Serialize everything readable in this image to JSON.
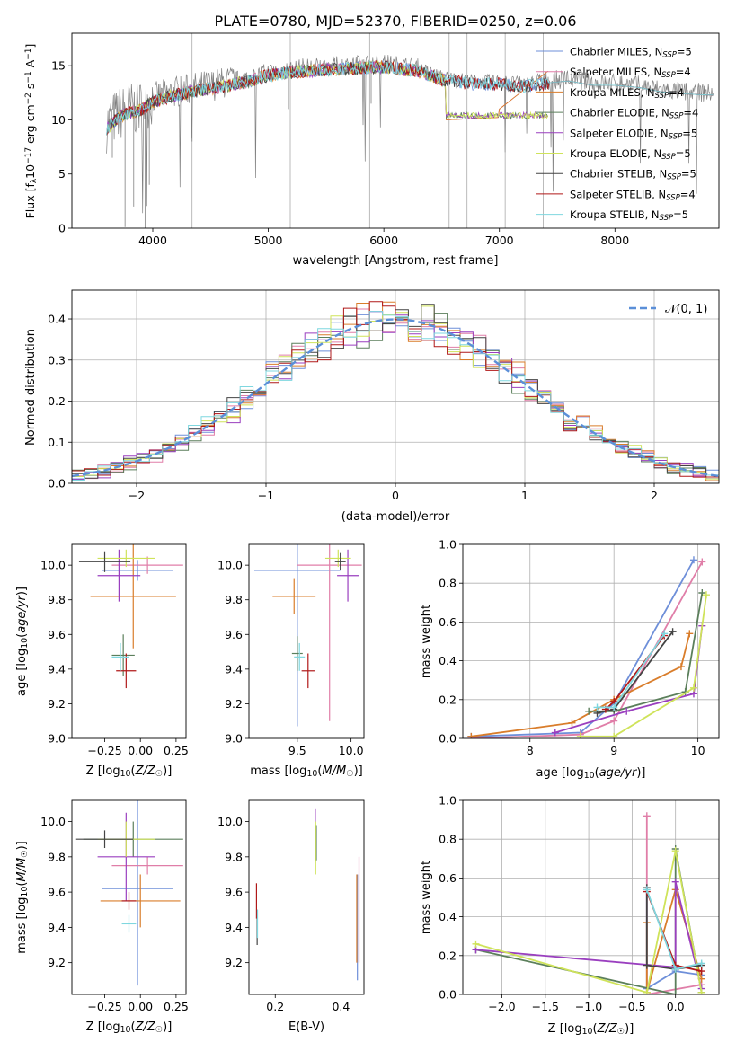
{
  "title": "PLATE=0780, MJD=52370, FIBERID=0250, z=0.06",
  "colors": {
    "Chabrier MILES": "#6e8fd9",
    "Salpeter MILES": "#e07ea8",
    "Kroupa MILES": "#d97d2b",
    "Chabrier ELODIE": "#5b7f5b",
    "Salpeter ELODIE": "#9a3fbf",
    "Kroupa ELODIE": "#cfe35a",
    "Chabrier STELIB": "#444444",
    "Salpeter STELIB": "#b01818",
    "Kroupa STELIB": "#7fd7df"
  },
  "chart_data": [
    {
      "type": "line",
      "id": "spectrum",
      "xlabel": "wavelength [Angstrom, rest frame]",
      "ylabel": "Flux [f_λ 10^-17 erg cm^-2 s^-1 A^-1]",
      "xlim": [
        3300,
        8900
      ],
      "ylim": [
        0,
        18
      ],
      "xticks": [
        "4000",
        "5000",
        "6000",
        "7000",
        "8000"
      ],
      "yticks": [
        "0",
        "5",
        "10",
        "15"
      ],
      "grid": false,
      "legend": "top-right",
      "legend_entries": [
        {
          "model": "Chabrier MILES",
          "nssp": "5"
        },
        {
          "model": "Salpeter MILES",
          "nssp": "4"
        },
        {
          "model": "Kroupa MILES",
          "nssp": "4"
        },
        {
          "model": "Chabrier ELODIE",
          "nssp": "4"
        },
        {
          "model": "Salpeter ELODIE",
          "nssp": "5"
        },
        {
          "model": "Kroupa ELODIE",
          "nssp": "5"
        },
        {
          "model": "Chabrier STELIB",
          "nssp": "5"
        },
        {
          "model": "Salpeter STELIB",
          "nssp": "4"
        },
        {
          "model": "Kroupa STELIB",
          "nssp": "5"
        }
      ],
      "data_continuum": [
        [
          3600,
          9.5
        ],
        [
          3700,
          10.5
        ],
        [
          3800,
          11.0
        ],
        [
          3900,
          11.2
        ],
        [
          4000,
          12.0
        ],
        [
          4200,
          12.6
        ],
        [
          4500,
          13.2
        ],
        [
          4800,
          13.8
        ],
        [
          5000,
          14.4
        ],
        [
          5300,
          14.8
        ],
        [
          5600,
          15.0
        ],
        [
          6000,
          15.2
        ],
        [
          6300,
          14.8
        ],
        [
          6500,
          14.0
        ],
        [
          6800,
          13.6
        ],
        [
          7000,
          13.6
        ],
        [
          7200,
          13.4
        ],
        [
          7400,
          13.6
        ],
        [
          7600,
          13.8
        ],
        [
          7800,
          13.4
        ],
        [
          8000,
          13.4
        ],
        [
          8200,
          13.2
        ],
        [
          8400,
          12.8
        ],
        [
          8600,
          12.6
        ],
        [
          8800,
          12.5
        ]
      ]
    },
    {
      "type": "histogram",
      "id": "residuals",
      "xlabel": "(data-model)/error",
      "ylabel": "Normed distribution",
      "xlim": [
        -2.5,
        2.5
      ],
      "ylim": [
        0,
        0.47
      ],
      "xticks": [
        "−2",
        "−1",
        "0",
        "1",
        "2"
      ],
      "yticks": [
        "0.0",
        "0.1",
        "0.2",
        "0.3",
        "0.4"
      ],
      "grid": true,
      "legend": "top-right",
      "reference_curve": "𝒩(0, 1)"
    },
    {
      "type": "scatter",
      "id": "age-vs-Z",
      "xlabel": "Z [log₁₀(Z/Z☉)]",
      "ylabel": "age  [log₁₀(age/yr)]",
      "xlim": [
        -0.48,
        0.32
      ],
      "ylim": [
        9.0,
        10.12
      ],
      "xticks": [
        "−0.25",
        "0.00",
        "0.25"
      ],
      "yticks": [
        "9.0",
        "9.2",
        "9.4",
        "9.6",
        "9.8",
        "10.0"
      ],
      "points": [
        {
          "model": "Chabrier MILES",
          "x": -0.02,
          "y": 9.97,
          "xerr": 0.25,
          "yerr": 0.06
        },
        {
          "model": "Salpeter MILES",
          "x": 0.05,
          "y": 10.0,
          "xerr": 0.25,
          "yerr": 0.05
        },
        {
          "model": "Kroupa MILES",
          "x": -0.05,
          "y": 9.82,
          "xerr": 0.3,
          "yerr": 0.3
        },
        {
          "model": "Chabrier ELODIE",
          "x": -0.12,
          "y": 9.48,
          "xerr": 0.08,
          "yerr": 0.12
        },
        {
          "model": "Salpeter ELODIE",
          "x": -0.15,
          "y": 9.94,
          "xerr": 0.15,
          "yerr": 0.15
        },
        {
          "model": "Kroupa ELODIE",
          "x": -0.1,
          "y": 10.04,
          "xerr": 0.2,
          "yerr": 0.05
        },
        {
          "model": "Chabrier STELIB",
          "x": -0.25,
          "y": 10.02,
          "xerr": 0.18,
          "yerr": 0.06
        },
        {
          "model": "Salpeter STELIB",
          "x": -0.1,
          "y": 9.39,
          "xerr": 0.07,
          "yerr": 0.1
        },
        {
          "model": "Kroupa STELIB",
          "x": -0.14,
          "y": 9.47,
          "xerr": 0.06,
          "yerr": 0.08
        }
      ]
    },
    {
      "type": "scatter",
      "id": "age-vs-mass",
      "xlabel": "mass [log₁₀(M/M☉)]",
      "ylabel": "",
      "xlim": [
        9.05,
        10.12
      ],
      "ylim": [
        9.0,
        10.12
      ],
      "xticks": [
        "9.5",
        "10.0"
      ],
      "yticks": [
        "9.0",
        "9.2",
        "9.4",
        "9.6",
        "9.8",
        "10.0"
      ],
      "points": [
        {
          "model": "Chabrier MILES",
          "x": 9.5,
          "y": 9.97,
          "xerr": 0.4,
          "yerr": 0.9
        },
        {
          "model": "Salpeter MILES",
          "x": 9.8,
          "y": 10.0,
          "xerr": 0.3,
          "yerr": 0.9
        },
        {
          "model": "Kroupa MILES",
          "x": 9.47,
          "y": 9.82,
          "xerr": 0.2,
          "yerr": 0.1
        },
        {
          "model": "Chabrier ELODIE",
          "x": 9.5,
          "y": 9.49,
          "xerr": 0.05,
          "yerr": 0.1
        },
        {
          "model": "Salpeter ELODIE",
          "x": 9.97,
          "y": 9.94,
          "xerr": 0.1,
          "yerr": 0.15
        },
        {
          "model": "Kroupa ELODIE",
          "x": 9.88,
          "y": 10.04,
          "xerr": 0.12,
          "yerr": 0.05
        },
        {
          "model": "Chabrier STELIB",
          "x": 9.9,
          "y": 10.02,
          "xerr": 0.05,
          "yerr": 0.05
        },
        {
          "model": "Salpeter STELIB",
          "x": 9.6,
          "y": 9.39,
          "xerr": 0.06,
          "yerr": 0.1
        },
        {
          "model": "Kroupa STELIB",
          "x": 9.52,
          "y": 9.47,
          "xerr": 0.05,
          "yerr": 0.08
        }
      ]
    },
    {
      "type": "line",
      "id": "weight-vs-age",
      "xlabel": "age  [log₁₀(age/yr)]",
      "ylabel": "mass weight",
      "xlim": [
        7.2,
        10.25
      ],
      "ylim": [
        0,
        1.0
      ],
      "xticks": [
        "8",
        "9",
        "10"
      ],
      "yticks": [
        "0.0",
        "0.2",
        "0.4",
        "0.6",
        "0.8",
        "1.0"
      ],
      "grid": true,
      "series": [
        {
          "model": "Chabrier MILES",
          "points": [
            [
              7.3,
              0.01
            ],
            [
              8.6,
              0.03
            ],
            [
              9.0,
              0.18
            ],
            [
              9.95,
              0.92
            ]
          ]
        },
        {
          "model": "Salpeter MILES",
          "points": [
            [
              7.3,
              0.0
            ],
            [
              8.6,
              0.02
            ],
            [
              9.0,
              0.09
            ],
            [
              10.05,
              0.91
            ]
          ]
        },
        {
          "model": "Kroupa MILES",
          "points": [
            [
              7.3,
              0.01
            ],
            [
              8.5,
              0.08
            ],
            [
              9.0,
              0.2
            ],
            [
              9.8,
              0.37
            ],
            [
              9.9,
              0.54
            ]
          ]
        },
        {
          "model": "Chabrier ELODIE",
          "points": [
            [
              8.7,
              0.14
            ],
            [
              9.0,
              0.14
            ],
            [
              9.85,
              0.24
            ],
            [
              10.05,
              0.75
            ]
          ]
        },
        {
          "model": "Salpeter ELODIE",
          "points": [
            [
              8.3,
              0.03
            ],
            [
              9.15,
              0.14
            ],
            [
              9.95,
              0.23
            ],
            [
              10.05,
              0.58
            ]
          ]
        },
        {
          "model": "Kroupa ELODIE",
          "points": [
            [
              8.6,
              0.01
            ],
            [
              9.0,
              0.01
            ],
            [
              9.95,
              0.26
            ],
            [
              10.1,
              0.74
            ]
          ]
        },
        {
          "model": "Chabrier STELIB",
          "points": [
            [
              8.8,
              0.13
            ],
            [
              9.0,
              0.15
            ],
            [
              9.7,
              0.55
            ]
          ]
        },
        {
          "model": "Salpeter STELIB",
          "points": [
            [
              8.9,
              0.15
            ],
            [
              9.0,
              0.19
            ],
            [
              9.6,
              0.53
            ]
          ]
        },
        {
          "model": "Kroupa STELIB",
          "points": [
            [
              8.8,
              0.16
            ],
            [
              9.0,
              0.16
            ],
            [
              9.6,
              0.54
            ]
          ]
        }
      ]
    },
    {
      "type": "scatter",
      "id": "mass-vs-Z",
      "xlabel": "Z [log₁₀(Z/Z☉)]",
      "ylabel": "mass [log₁₀(M/M☉)]",
      "xlim": [
        -0.48,
        0.32
      ],
      "ylim": [
        9.02,
        10.12
      ],
      "xticks": [
        "−0.25",
        "0.00",
        "0.25"
      ],
      "yticks": [
        "9.2",
        "9.4",
        "9.6",
        "9.8",
        "10.0"
      ],
      "points": [
        {
          "model": "Chabrier MILES",
          "x": -0.02,
          "y": 9.62,
          "xerr": 0.25,
          "yerr": 0.55
        },
        {
          "model": "Salpeter MILES",
          "x": 0.05,
          "y": 9.75,
          "xerr": 0.25,
          "yerr": 0.05
        },
        {
          "model": "Kroupa MILES",
          "x": 0.0,
          "y": 9.55,
          "xerr": 0.28,
          "yerr": 0.15
        },
        {
          "model": "Chabrier ELODIE",
          "x": -0.05,
          "y": 9.9,
          "xerr": 0.35,
          "yerr": 0.1
        },
        {
          "model": "Salpeter ELODIE",
          "x": -0.1,
          "y": 9.8,
          "xerr": 0.2,
          "yerr": 0.25
        },
        {
          "model": "Kroupa ELODIE",
          "x": -0.1,
          "y": 9.9,
          "xerr": 0.2,
          "yerr": 0.1
        },
        {
          "model": "Chabrier STELIB",
          "x": -0.25,
          "y": 9.9,
          "xerr": 0.2,
          "yerr": 0.05
        },
        {
          "model": "Salpeter STELIB",
          "x": -0.08,
          "y": 9.55,
          "xerr": 0.05,
          "yerr": 0.05
        },
        {
          "model": "Kroupa STELIB",
          "x": -0.08,
          "y": 9.42,
          "xerr": 0.05,
          "yerr": 0.05
        }
      ]
    },
    {
      "type": "scatter",
      "id": "mass-vs-EBV",
      "xlabel": "E(B-V)",
      "ylabel": "",
      "xlim": [
        0.12,
        0.47
      ],
      "ylim": [
        9.02,
        10.12
      ],
      "xticks": [
        "0.2",
        "0.4"
      ],
      "yticks": [
        "9.2",
        "9.4",
        "9.6",
        "9.8",
        "10.0"
      ],
      "points": [
        {
          "model": "Chabrier MILES",
          "x": 0.45,
          "y": 9.4,
          "yerr": 0.3
        },
        {
          "model": "Salpeter MILES",
          "x": 0.455,
          "y": 9.5,
          "yerr": 0.3
        },
        {
          "model": "Kroupa MILES",
          "x": 0.448,
          "y": 9.45,
          "yerr": 0.25
        },
        {
          "model": "Chabrier ELODIE",
          "x": 0.325,
          "y": 9.88,
          "yerr": 0.1
        },
        {
          "model": "Salpeter ELODIE",
          "x": 0.322,
          "y": 9.97,
          "yerr": 0.1
        },
        {
          "model": "Kroupa ELODIE",
          "x": 0.323,
          "y": 9.85,
          "yerr": 0.15
        },
        {
          "model": "Chabrier STELIB",
          "x": 0.145,
          "y": 9.4,
          "yerr": 0.1
        },
        {
          "model": "Salpeter STELIB",
          "x": 0.143,
          "y": 9.55,
          "yerr": 0.1
        },
        {
          "model": "Kroupa STELIB",
          "x": 0.146,
          "y": 9.42,
          "yerr": 0.08
        }
      ]
    },
    {
      "type": "line",
      "id": "weight-vs-Z",
      "xlabel": "Z [log₁₀(Z/Z☉)]",
      "ylabel": "mass weight",
      "xlim": [
        -2.45,
        0.5
      ],
      "ylim": [
        0,
        1.0
      ],
      "xticks": [
        "−2.0",
        "−1.5",
        "−1.0",
        "−0.5",
        "0.0"
      ],
      "yticks": [
        "0.0",
        "0.2",
        "0.4",
        "0.6",
        "0.8",
        "1.0"
      ],
      "grid": true,
      "series": [
        {
          "model": "Chabrier MILES",
          "points": [
            [
              -0.33,
              0.55
            ],
            [
              -0.33,
              0.03
            ],
            [
              0.0,
              0.12
            ],
            [
              0.3,
              0.1
            ]
          ]
        },
        {
          "model": "Salpeter MILES",
          "points": [
            [
              -0.33,
              0.92
            ],
            [
              -0.33,
              0.0
            ],
            [
              0.3,
              0.05
            ]
          ]
        },
        {
          "model": "Kroupa MILES",
          "points": [
            [
              -0.33,
              0.37
            ],
            [
              -0.33,
              0.01
            ],
            [
              0.0,
              0.54
            ],
            [
              0.3,
              0.08
            ]
          ]
        },
        {
          "model": "Chabrier ELODIE",
          "points": [
            [
              -2.3,
              0.23
            ],
            [
              0.0,
              0.0
            ],
            [
              0.0,
              0.75
            ],
            [
              0.3,
              0.01
            ]
          ]
        },
        {
          "model": "Salpeter ELODIE",
          "points": [
            [
              -2.3,
              0.23
            ],
            [
              0.0,
              0.14
            ],
            [
              0.0,
              0.58
            ],
            [
              0.3,
              0.03
            ]
          ]
        },
        {
          "model": "Kroupa ELODIE",
          "points": [
            [
              -2.3,
              0.26
            ],
            [
              -0.33,
              0.01
            ],
            [
              0.0,
              0.74
            ],
            [
              0.3,
              0.01
            ]
          ]
        },
        {
          "model": "Chabrier STELIB",
          "points": [
            [
              -0.33,
              0.55
            ],
            [
              -0.33,
              0.15
            ],
            [
              0.0,
              0.13
            ],
            [
              0.3,
              0.15
            ]
          ]
        },
        {
          "model": "Salpeter STELIB",
          "points": [
            [
              -0.33,
              0.53
            ],
            [
              0.0,
              0.15
            ],
            [
              0.3,
              0.12
            ]
          ]
        },
        {
          "model": "Kroupa STELIB",
          "points": [
            [
              -0.33,
              0.54
            ],
            [
              0.0,
              0.13
            ],
            [
              0.3,
              0.16
            ]
          ]
        }
      ]
    }
  ]
}
